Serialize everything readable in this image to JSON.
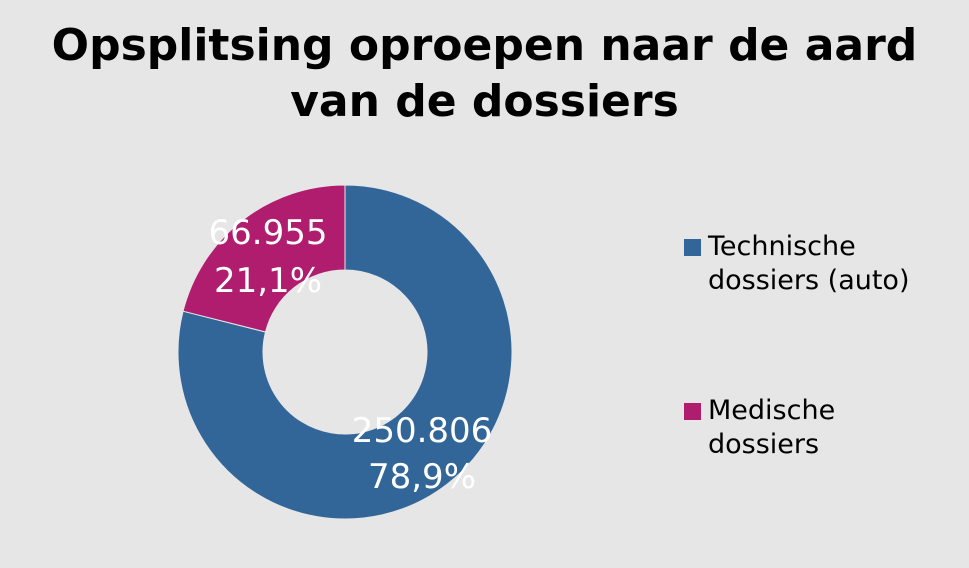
{
  "chart_data": {
    "type": "pie",
    "variant": "donut",
    "title": "Opsplitsing oproepen naar de aard van de dossiers",
    "categories": [
      "Technische dossiers (auto)",
      "Medische dossiers"
    ],
    "values": [
      250806,
      66955
    ],
    "value_labels": [
      "250.806",
      "66.955"
    ],
    "percent_labels": [
      "78,9%",
      "21,1%"
    ],
    "colors": [
      "#326699",
      "#b01c6e"
    ],
    "legend_position": "right"
  }
}
